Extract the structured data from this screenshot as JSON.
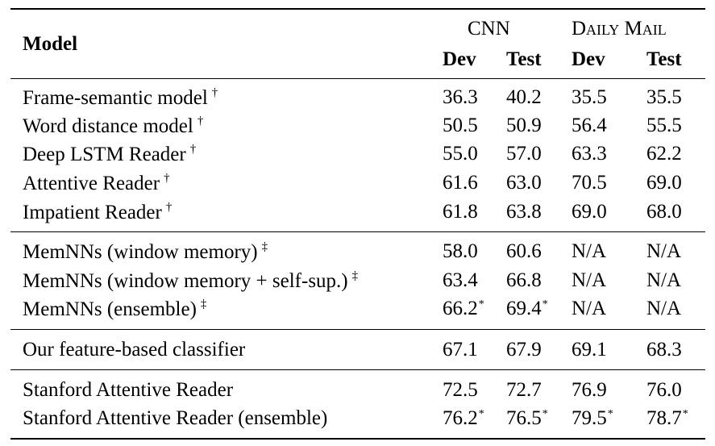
{
  "header": {
    "model": "Model",
    "datasets": [
      "CNN",
      "Daily Mail"
    ],
    "splits": [
      "Dev",
      "Test",
      "Dev",
      "Test"
    ]
  },
  "groups": [
    {
      "rows": [
        {
          "model": "Frame-semantic model",
          "mark": "†",
          "values": [
            "36.3",
            "40.2",
            "35.5",
            "35.5"
          ],
          "stars": [
            "",
            "",
            "",
            ""
          ]
        },
        {
          "model": "Word distance model",
          "mark": "†",
          "values": [
            "50.5",
            "50.9",
            "56.4",
            "55.5"
          ],
          "stars": [
            "",
            "",
            "",
            ""
          ]
        },
        {
          "model": "Deep LSTM Reader",
          "mark": "†",
          "values": [
            "55.0",
            "57.0",
            "63.3",
            "62.2"
          ],
          "stars": [
            "",
            "",
            "",
            ""
          ]
        },
        {
          "model": "Attentive Reader",
          "mark": "†",
          "values": [
            "61.6",
            "63.0",
            "70.5",
            "69.0"
          ],
          "stars": [
            "",
            "",
            "",
            ""
          ]
        },
        {
          "model": "Impatient Reader",
          "mark": "†",
          "values": [
            "61.8",
            "63.8",
            "69.0",
            "68.0"
          ],
          "stars": [
            "",
            "",
            "",
            ""
          ]
        }
      ]
    },
    {
      "rows": [
        {
          "model": "MemNNs (window memory)",
          "mark": "‡",
          "values": [
            "58.0",
            "60.6",
            "N/A",
            "N/A"
          ],
          "stars": [
            "",
            "",
            "",
            ""
          ]
        },
        {
          "model": "MemNNs (window memory + self-sup.)",
          "mark": "‡",
          "values": [
            "63.4",
            "66.8",
            "N/A",
            "N/A"
          ],
          "stars": [
            "",
            "",
            "",
            ""
          ]
        },
        {
          "model": "MemNNs (ensemble)",
          "mark": "‡",
          "values": [
            "66.2",
            "69.4",
            "N/A",
            "N/A"
          ],
          "stars": [
            "*",
            "*",
            "",
            ""
          ]
        }
      ]
    },
    {
      "rows": [
        {
          "model": "Our feature-based classifier",
          "mark": "",
          "values": [
            "67.1",
            "67.9",
            "69.1",
            "68.3"
          ],
          "stars": [
            "",
            "",
            "",
            ""
          ]
        }
      ]
    },
    {
      "rows": [
        {
          "model": "Stanford Attentive Reader",
          "mark": "",
          "values": [
            "72.5",
            "72.7",
            "76.9",
            "76.0"
          ],
          "stars": [
            "",
            "",
            "",
            ""
          ]
        },
        {
          "model": "Stanford Attentive Reader (ensemble)",
          "mark": "",
          "values": [
            "76.2",
            "76.5",
            "79.5",
            "78.7"
          ],
          "stars": [
            "*",
            "*",
            "*",
            "*"
          ]
        }
      ]
    }
  ]
}
